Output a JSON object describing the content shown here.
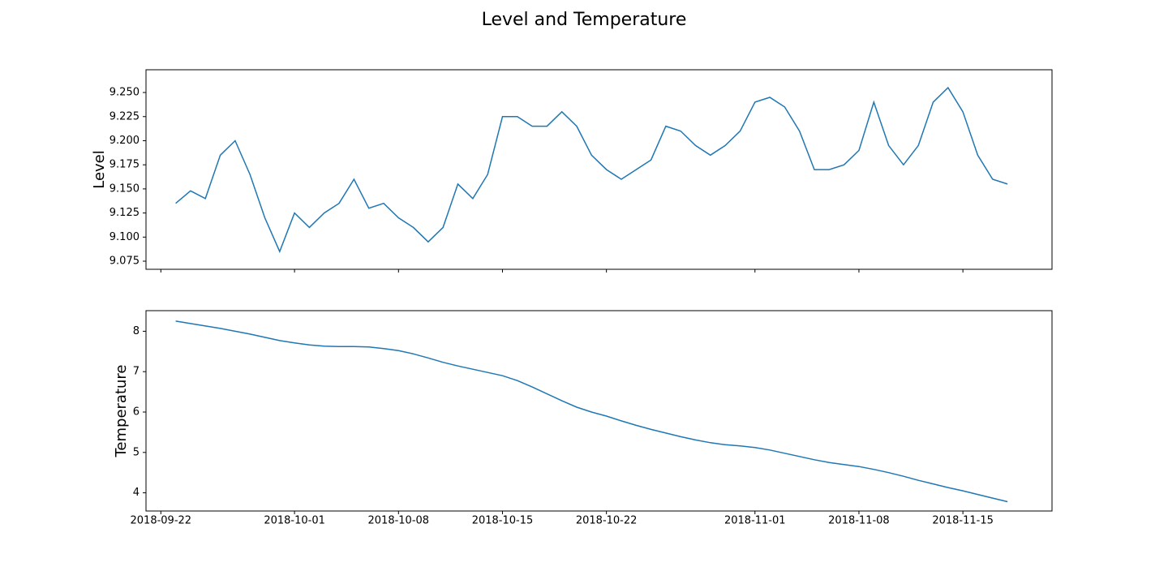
{
  "title": "Level and Temperature",
  "chart_data": [
    {
      "type": "line",
      "ylabel": "Level",
      "x": [
        "2018-09-23",
        "2018-09-24",
        "2018-09-25",
        "2018-09-26",
        "2018-09-27",
        "2018-09-28",
        "2018-09-29",
        "2018-09-30",
        "2018-10-01",
        "2018-10-02",
        "2018-10-03",
        "2018-10-04",
        "2018-10-05",
        "2018-10-06",
        "2018-10-07",
        "2018-10-08",
        "2018-10-09",
        "2018-10-10",
        "2018-10-11",
        "2018-10-12",
        "2018-10-13",
        "2018-10-14",
        "2018-10-15",
        "2018-10-16",
        "2018-10-17",
        "2018-10-18",
        "2018-10-19",
        "2018-10-20",
        "2018-10-21",
        "2018-10-22",
        "2018-10-23",
        "2018-10-24",
        "2018-10-25",
        "2018-10-26",
        "2018-10-27",
        "2018-10-28",
        "2018-10-29",
        "2018-10-30",
        "2018-10-31",
        "2018-11-01",
        "2018-11-02",
        "2018-11-03",
        "2018-11-04",
        "2018-11-05",
        "2018-11-06",
        "2018-11-07",
        "2018-11-08",
        "2018-11-09",
        "2018-11-10",
        "2018-11-11",
        "2018-11-12",
        "2018-11-13",
        "2018-11-14",
        "2018-11-15",
        "2018-11-16",
        "2018-11-17",
        "2018-11-18"
      ],
      "series": [
        {
          "color": "#1f77b4",
          "values": [
            9.135,
            9.148,
            9.14,
            9.185,
            9.2,
            9.165,
            9.12,
            9.085,
            9.125,
            9.11,
            9.125,
            9.135,
            9.16,
            9.13,
            9.135,
            9.12,
            9.11,
            9.095,
            9.11,
            9.155,
            9.14,
            9.165,
            9.225,
            9.225,
            9.215,
            9.215,
            9.23,
            9.215,
            9.185,
            9.17,
            9.16,
            9.17,
            9.18,
            9.215,
            9.21,
            9.195,
            9.185,
            9.195,
            9.21,
            9.24,
            9.245,
            9.235,
            9.21,
            9.17,
            9.17,
            9.175,
            9.19,
            9.24,
            9.195,
            9.175,
            9.195,
            9.24,
            9.255,
            9.23,
            9.185,
            9.16,
            9.155
          ]
        }
      ],
      "xlim": [
        "2018-09-21",
        "2018-11-21"
      ],
      "xticks": [
        "2018-09-22",
        "2018-10-01",
        "2018-10-08",
        "2018-10-15",
        "2018-10-22",
        "2018-11-01",
        "2018-11-08",
        "2018-11-15"
      ],
      "ylim": [
        9.0666,
        9.2736
      ],
      "yticks": [
        9.075,
        {
          "value": 9.1,
          "label": "9.100"
        },
        9.125,
        {
          "value": 9.15,
          "label": "9.150"
        },
        9.175,
        {
          "value": 9.2,
          "label": "9.200"
        },
        9.225,
        {
          "value": 9.25,
          "label": "9.250"
        }
      ]
    },
    {
      "type": "line",
      "ylabel": "Temperature",
      "x": [
        "2018-09-23",
        "2018-09-24",
        "2018-09-25",
        "2018-09-26",
        "2018-09-27",
        "2018-09-28",
        "2018-09-29",
        "2018-09-30",
        "2018-10-01",
        "2018-10-02",
        "2018-10-03",
        "2018-10-04",
        "2018-10-05",
        "2018-10-06",
        "2018-10-07",
        "2018-10-08",
        "2018-10-09",
        "2018-10-10",
        "2018-10-11",
        "2018-10-12",
        "2018-10-13",
        "2018-10-14",
        "2018-10-15",
        "2018-10-16",
        "2018-10-17",
        "2018-10-18",
        "2018-10-19",
        "2018-10-20",
        "2018-10-21",
        "2018-10-22",
        "2018-10-23",
        "2018-10-24",
        "2018-10-25",
        "2018-10-26",
        "2018-10-27",
        "2018-10-28",
        "2018-10-29",
        "2018-10-30",
        "2018-10-31",
        "2018-11-01",
        "2018-11-02",
        "2018-11-03",
        "2018-11-04",
        "2018-11-05",
        "2018-11-06",
        "2018-11-07",
        "2018-11-08",
        "2018-11-09",
        "2018-11-10",
        "2018-11-11",
        "2018-11-12",
        "2018-11-13",
        "2018-11-14",
        "2018-11-15",
        "2018-11-16",
        "2018-11-17",
        "2018-11-18"
      ],
      "series": [
        {
          "color": "#1f77b4",
          "values": [
            8.25,
            8.19,
            8.13,
            8.07,
            8.0,
            7.93,
            7.85,
            7.77,
            7.71,
            7.66,
            7.63,
            7.62,
            7.62,
            7.61,
            7.57,
            7.52,
            7.44,
            7.34,
            7.23,
            7.14,
            7.06,
            6.98,
            6.9,
            6.78,
            6.62,
            6.45,
            6.28,
            6.12,
            6.0,
            5.9,
            5.78,
            5.67,
            5.57,
            5.48,
            5.39,
            5.31,
            5.24,
            5.19,
            5.16,
            5.12,
            5.06,
            4.98,
            4.9,
            4.82,
            4.75,
            4.7,
            4.65,
            4.58,
            4.5,
            4.41,
            4.31,
            4.22,
            4.13,
            4.05,
            3.96,
            3.87,
            3.78
          ]
        }
      ],
      "xlim": [
        "2018-09-21",
        "2018-11-21"
      ],
      "xticks": [
        "2018-09-22",
        "2018-10-01",
        "2018-10-08",
        "2018-10-15",
        "2018-10-22",
        "2018-11-01",
        "2018-11-08",
        "2018-11-15"
      ],
      "show_xtick_labels": true,
      "ylim": [
        3.55,
        8.51
      ],
      "yticks": [
        4,
        5,
        6,
        7,
        8
      ]
    }
  ]
}
